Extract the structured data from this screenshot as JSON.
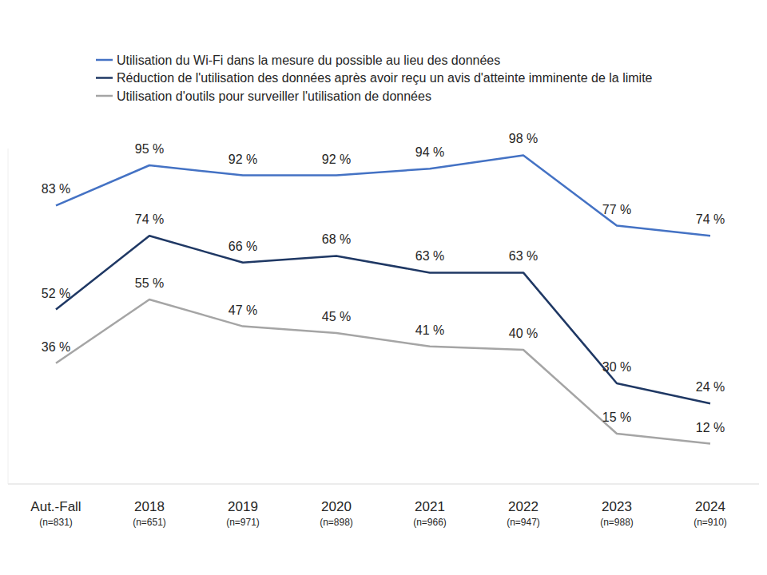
{
  "chart_data": {
    "type": "line",
    "categories": [
      "Aut.-Fall",
      "2018",
      "2019",
      "2020",
      "2021",
      "2022",
      "2023",
      "2024"
    ],
    "sample_sizes": [
      "(n=831)",
      "(n=651)",
      "(n=971)",
      "(n=898)",
      "(n=966)",
      "(n=947)",
      "(n=988)",
      "(n=910)"
    ],
    "series": [
      {
        "name": "Utilisation du Wi-Fi dans la mesure du possible au lieu des données",
        "color": "#4472c4",
        "values": [
          83,
          95,
          92,
          92,
          94,
          98,
          77,
          74
        ],
        "value_labels": [
          "83 %",
          "95 %",
          "92 %",
          "92 %",
          "94 %",
          "98 %",
          "77 %",
          "74 %"
        ]
      },
      {
        "name": "Réduction de l'utilisation des données après avoir reçu un avis d'atteinte imminente de la limite",
        "color": "#1f3864",
        "values": [
          52,
          74,
          66,
          68,
          63,
          63,
          30,
          24
        ],
        "value_labels": [
          "52 %",
          "74 %",
          "66 %",
          "68 %",
          "63 %",
          "63 %",
          "30 %",
          "24 %"
        ]
      },
      {
        "name": "Utilisation d'outils pour surveiller l'utilisation de données",
        "color": "#a5a5a5",
        "values": [
          36,
          55,
          47,
          45,
          41,
          40,
          15,
          12
        ],
        "value_labels": [
          "36 %",
          "55 %",
          "47 %",
          "45 %",
          "41 %",
          "40 %",
          "15 %",
          "12 %"
        ]
      }
    ],
    "ylim": [
      0,
      100
    ],
    "tick_labels": "x",
    "data_labels": true,
    "grid": false,
    "legend": "top-left"
  }
}
